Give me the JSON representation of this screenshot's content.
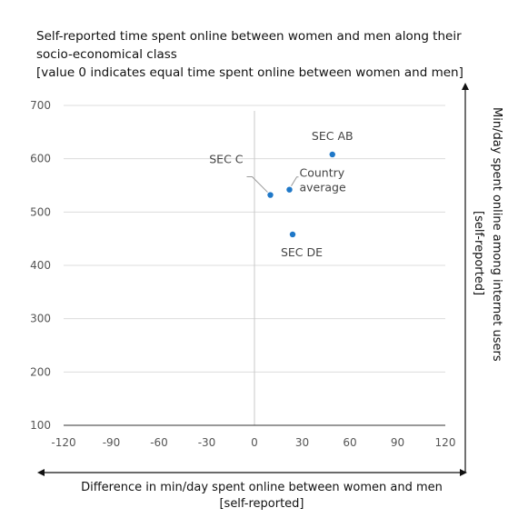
{
  "title": {
    "line1": "Self-reported time spent online between women and men along their",
    "line2": "socio-economical class",
    "line3": "[value 0 indicates equal time spent online between women and men]"
  },
  "chart_data": {
    "type": "scatter",
    "title": "Self-reported time spent online between women and men along their socio-economical class",
    "subtitle": "[value 0 indicates equal time spent online between women and men]",
    "xlabel": "Difference in min/day spent online between women and men",
    "xlabel_sub": "[self-reported]",
    "ylabel": "Min/day spent online among internet users",
    "ylabel_sub": "[self-reported]",
    "xlim": [
      -120,
      120
    ],
    "ylim": [
      100,
      700
    ],
    "xticks": [
      -120,
      -90,
      -60,
      -30,
      0,
      30,
      60,
      90,
      120
    ],
    "yticks": [
      100,
      200,
      300,
      400,
      500,
      600,
      700
    ],
    "grid": "horizontal",
    "point_color": "#1f78c8",
    "points": [
      {
        "label": "SEC AB",
        "x": 49,
        "y": 608
      },
      {
        "label": "SEC C",
        "x": 10,
        "y": 532
      },
      {
        "label": "Country average",
        "label_lines": [
          "Country",
          "average"
        ],
        "x": 22,
        "y": 542
      },
      {
        "label": "SEC DE",
        "x": 24,
        "y": 458
      }
    ]
  }
}
